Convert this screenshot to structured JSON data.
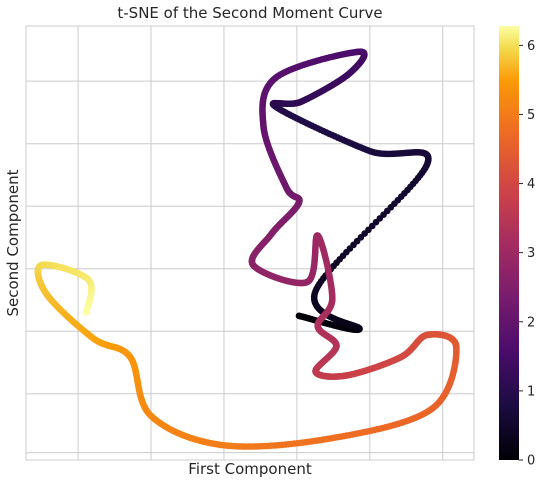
{
  "chart_data": {
    "type": "scatter",
    "title": "t-SNE of the Second Moment Curve",
    "xlabel": "First Component",
    "ylabel": "Second Component",
    "xticklabels_visible": false,
    "yticklabels_visible": false,
    "grid": true,
    "colormap": "inferno",
    "color_range": [
      0,
      6.28
    ],
    "colorbar": {
      "ticks": [
        "0",
        "1",
        "2",
        "3",
        "4",
        "5",
        "6"
      ]
    },
    "series": [
      {
        "encoding": "parameter t (color) along the curve, coordinates in t-SNE units",
        "points": [
          [
            0.0,
            0.12,
            -0.14
          ],
          [
            0.2,
            0.7,
            -0.32
          ],
          [
            0.4,
            0.28,
            0.2
          ],
          [
            0.6,
            1.35,
            1.92
          ],
          [
            0.75,
            0.8,
            2.1
          ],
          [
            0.95,
            -0.1,
            2.7
          ],
          [
            1.15,
            0.14,
            2.77
          ],
          [
            1.35,
            0.6,
            3.15
          ],
          [
            1.55,
            0.7,
            3.45
          ],
          [
            1.8,
            -0.1,
            3.1
          ],
          [
            2.0,
            -0.22,
            2.43
          ],
          [
            2.2,
            0.0,
            1.6
          ],
          [
            2.35,
            0.12,
            1.4
          ],
          [
            2.55,
            -0.14,
            0.98
          ],
          [
            2.7,
            -0.32,
            0.55
          ],
          [
            2.85,
            0.2,
            0.32
          ],
          [
            3.0,
            0.3,
            0.95
          ],
          [
            3.15,
            0.44,
            0.1
          ],
          [
            3.3,
            0.3,
            -0.28
          ],
          [
            3.4,
            0.48,
            -0.55
          ],
          [
            3.6,
            0.28,
            -0.9
          ],
          [
            3.8,
            0.58,
            -0.95
          ],
          [
            4.0,
            1.1,
            -0.7
          ],
          [
            4.2,
            1.35,
            -0.4
          ],
          [
            4.4,
            1.63,
            -0.56
          ],
          [
            4.6,
            1.4,
            -1.4
          ],
          [
            4.8,
            0.45,
            -1.8
          ],
          [
            5.0,
            -0.6,
            -1.9
          ],
          [
            5.2,
            -1.3,
            -1.5
          ],
          [
            5.4,
            -1.5,
            -0.7
          ],
          [
            5.55,
            -1.85,
            -0.45
          ],
          [
            5.75,
            -2.3,
            0.15
          ],
          [
            5.95,
            -2.35,
            0.55
          ],
          [
            6.1,
            -1.9,
            0.35
          ],
          [
            6.28,
            -1.92,
            -0.1
          ]
        ]
      }
    ]
  }
}
